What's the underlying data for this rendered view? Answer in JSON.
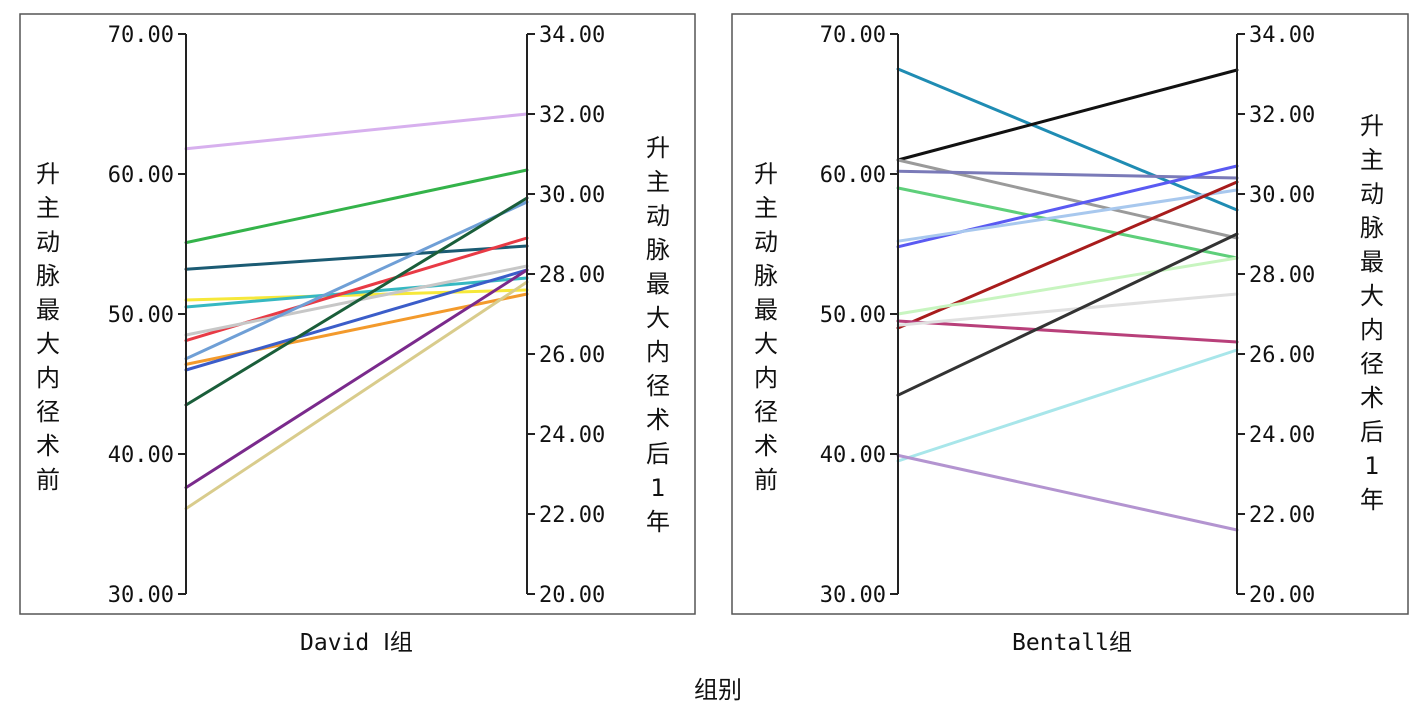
{
  "chart_data": {
    "type": "line",
    "xlabel": "组别",
    "left_axis": {
      "label": "升主动脉最大内径术前",
      "ylim": [
        30,
        70
      ],
      "ticks": [
        "30.00",
        "40.00",
        "50.00",
        "60.00",
        "70.00"
      ]
    },
    "right_axis": {
      "label": "升主动脉最大内径术后1年",
      "ylim": [
        20,
        34
      ],
      "ticks": [
        "20.00",
        "22.00",
        "24.00",
        "26.00",
        "28.00",
        "30.00",
        "32.00",
        "34.00"
      ]
    },
    "grid": false,
    "legend": "none",
    "panels": [
      {
        "category": "David Ⅰ组",
        "series": [
          {
            "pre": 61.8,
            "post": 32.0,
            "color": "#d7b0ee"
          },
          {
            "pre": 55.1,
            "post": 30.6,
            "color": "#34b34a"
          },
          {
            "pre": 53.2,
            "post": 28.7,
            "color": "#1b5b73"
          },
          {
            "pre": 51.0,
            "post": 27.6,
            "color": "#f6e83a"
          },
          {
            "pre": 50.5,
            "post": 27.9,
            "color": "#36b8c2"
          },
          {
            "pre": 48.1,
            "post": 28.9,
            "color": "#e83a45"
          },
          {
            "pre": 48.5,
            "post": 28.2,
            "color": "#c7c7c7"
          },
          {
            "pre": 46.8,
            "post": 29.8,
            "color": "#6f9fd6"
          },
          {
            "pre": 46.4,
            "post": 27.5,
            "color": "#f39a2c"
          },
          {
            "pre": 46.0,
            "post": 28.1,
            "color": "#3b5dc9"
          },
          {
            "pre": 43.5,
            "post": 29.9,
            "color": "#1a5e3a"
          },
          {
            "pre": 37.6,
            "post": 28.1,
            "color": "#7a2a8c"
          },
          {
            "pre": 36.1,
            "post": 27.8,
            "color": "#d9cc8c"
          }
        ]
      },
      {
        "category": "Bentall组",
        "series": [
          {
            "pre": 67.5,
            "post": 29.6,
            "color": "#1f8cb3"
          },
          {
            "pre": 61.0,
            "post": 33.1,
            "color": "#111111"
          },
          {
            "pre": 61.0,
            "post": 28.9,
            "color": "#9a9a9a"
          },
          {
            "pre": 60.2,
            "post": 30.4,
            "color": "#7a7ab8"
          },
          {
            "pre": 59.0,
            "post": 28.4,
            "color": "#5ecf7a"
          },
          {
            "pre": 54.8,
            "post": 30.7,
            "color": "#5a5af2"
          },
          {
            "pre": 55.2,
            "post": 30.1,
            "color": "#a8c8ee"
          },
          {
            "pre": 49.0,
            "post": 30.3,
            "color": "#a81c1c"
          },
          {
            "pre": 49.5,
            "post": 26.3,
            "color": "#b8407a"
          },
          {
            "pre": 50.0,
            "post": 28.4,
            "color": "#c8f5c0"
          },
          {
            "pre": 49.2,
            "post": 27.5,
            "color": "#e0e0e0"
          },
          {
            "pre": 44.2,
            "post": 29.0,
            "color": "#333333"
          },
          {
            "pre": 39.5,
            "post": 26.1,
            "color": "#a8e6ea"
          },
          {
            "pre": 39.9,
            "post": 21.6,
            "color": "#b394d0"
          }
        ]
      }
    ]
  }
}
